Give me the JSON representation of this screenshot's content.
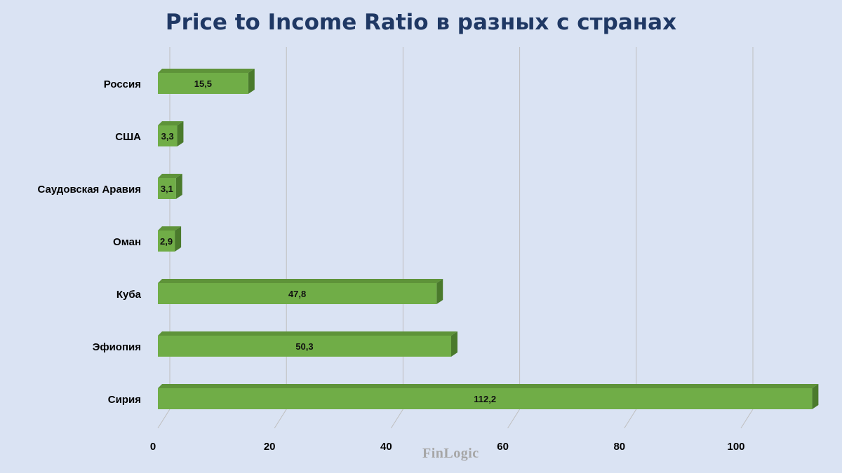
{
  "chart_data": {
    "type": "bar",
    "orientation": "horizontal",
    "title": "Price to Income Ratio в разных с странах",
    "categories": [
      "Россия",
      "США",
      "Саудовская Аравия",
      "Оман",
      "Куба",
      "Эфиопия",
      "Сирия"
    ],
    "values": [
      15.5,
      3.3,
      3.1,
      2.9,
      47.8,
      50.3,
      112.2
    ],
    "value_labels": [
      "15,5",
      "3,3",
      "3,1",
      "2,9",
      "47,8",
      "50,3",
      "112,2"
    ],
    "xlim": [
      0,
      112.2
    ],
    "xticks": [
      0,
      20,
      40,
      60,
      80,
      100
    ],
    "xlabel": "",
    "ylabel": "",
    "grid": "vertical",
    "legend": "none",
    "style": "3d"
  },
  "watermark": "FinLogic",
  "colors": {
    "background": "#dae3f3",
    "bar_front": "#70ad47",
    "bar_top": "#5e9339",
    "bar_side": "#4a7a2c",
    "grid": "#bfbfbf",
    "title": "#1f3864"
  }
}
